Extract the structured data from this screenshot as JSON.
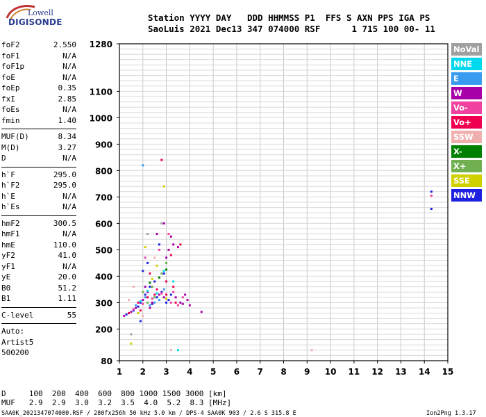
{
  "logo": {
    "line1": "Lowell",
    "line2": "DIGISONDE"
  },
  "header": {
    "row1": "Station YYYY DAY   DDD HHMMSS P1  FFS S AXN PPS IGA PS",
    "row2": "SaoLuis 2021 Dec13 347 074000 RSF      1 715 100 00- 11"
  },
  "params": {
    "group1": [
      {
        "name": "foF2",
        "value": "2.550"
      },
      {
        "name": "foF1",
        "value": "N/A"
      },
      {
        "name": "foF1p",
        "value": "N/A"
      },
      {
        "name": "foE",
        "value": "N/A"
      },
      {
        "name": "foEp",
        "value": "0.35"
      },
      {
        "name": "fxI",
        "value": "2.85"
      },
      {
        "name": "foEs",
        "value": "N/A"
      },
      {
        "name": "fmin",
        "value": "1.40"
      }
    ],
    "group2": [
      {
        "name": "MUF(D)",
        "value": "8.34"
      },
      {
        "name": "M(D)",
        "value": "3.27"
      },
      {
        "name": "D",
        "value": "N/A"
      }
    ],
    "group3": [
      {
        "name": "h`F",
        "value": "295.0"
      },
      {
        "name": "h`F2",
        "value": "295.0"
      },
      {
        "name": "h`E",
        "value": "N/A"
      },
      {
        "name": "h`Es",
        "value": "N/A"
      }
    ],
    "group4": [
      {
        "name": "hmF2",
        "value": "300.5"
      },
      {
        "name": "hmF1",
        "value": "N/A"
      },
      {
        "name": "hmE",
        "value": "110.0"
      },
      {
        "name": "yF2",
        "value": "41.0"
      },
      {
        "name": "yF1",
        "value": "N/A"
      },
      {
        "name": "yE",
        "value": "20.0"
      },
      {
        "name": "B0",
        "value": "51.2"
      },
      {
        "name": "B1",
        "value": "1.11"
      }
    ],
    "clevel": {
      "name": "C-level",
      "value": "55"
    },
    "autoscale": [
      "Auto:",
      "Artist5",
      "500200"
    ]
  },
  "legend": [
    {
      "label": "NoVal",
      "color": "#a0a0a0"
    },
    {
      "label": "NNE",
      "color": "#00d8f0"
    },
    {
      "label": "E",
      "color": "#3a9cf0"
    },
    {
      "label": "W",
      "color": "#a800a8"
    },
    {
      "label": "Vo-",
      "color": "#f040a0"
    },
    {
      "label": "Vo+",
      "color": "#f00050"
    },
    {
      "label": "SSW",
      "color": "#f0b0b0"
    },
    {
      "label": "X-",
      "color": "#008000"
    },
    {
      "label": "X+",
      "color": "#70b050"
    },
    {
      "label": "SSE",
      "color": "#d0d000"
    },
    {
      "label": "NNW",
      "color": "#2020e0"
    }
  ],
  "chart_data": {
    "type": "scatter",
    "title": "",
    "xlabel": "",
    "ylabel": "",
    "xlim": [
      1,
      15
    ],
    "ylim": [
      80,
      1280
    ],
    "x_ticks": [
      1,
      2,
      3,
      4,
      5,
      6,
      7,
      8,
      9,
      10,
      11,
      12,
      13,
      14,
      15
    ],
    "y_ticks": [
      80,
      200,
      300,
      400,
      500,
      600,
      700,
      800,
      900,
      1000,
      1100,
      1280
    ],
    "grid": true,
    "series": [
      {
        "label": "NNW",
        "color": "#2020e0",
        "points": [
          [
            1.3,
            255
          ],
          [
            1.6,
            270
          ],
          [
            1.9,
            300
          ],
          [
            2.1,
            330
          ],
          [
            2.3,
            360
          ],
          [
            2.6,
            320
          ],
          [
            2.8,
            340
          ],
          [
            3.0,
            300
          ],
          [
            3.2,
            330
          ],
          [
            2.0,
            420
          ],
          [
            2.2,
            450
          ],
          [
            2.5,
            380
          ],
          [
            2.9,
            410
          ],
          [
            1.8,
            285
          ],
          [
            2.4,
            295
          ],
          [
            14.3,
            720
          ],
          [
            14.3,
            655
          ],
          [
            1.9,
            230
          ],
          [
            2.7,
            520
          ],
          [
            3.1,
            310
          ]
        ]
      },
      {
        "label": "W",
        "color": "#a800a8",
        "points": [
          [
            1.2,
            250
          ],
          [
            1.5,
            265
          ],
          [
            1.7,
            280
          ],
          [
            2.0,
            310
          ],
          [
            2.2,
            340
          ],
          [
            2.4,
            300
          ],
          [
            2.7,
            330
          ],
          [
            2.9,
            320
          ],
          [
            3.1,
            500
          ],
          [
            3.3,
            520
          ],
          [
            3.5,
            510
          ],
          [
            3.2,
            550
          ],
          [
            3.4,
            320
          ],
          [
            3.6,
            300
          ],
          [
            3.8,
            330
          ],
          [
            3.0,
            470
          ],
          [
            2.9,
            600
          ],
          [
            2.6,
            560
          ],
          [
            4.0,
            290
          ],
          [
            4.5,
            265
          ],
          [
            2.1,
            360
          ],
          [
            3.7,
            295
          ],
          [
            3.9,
            310
          ],
          [
            2.3,
            280
          ]
        ]
      },
      {
        "label": "Vo+",
        "color": "#f00050",
        "points": [
          [
            1.4,
            260
          ],
          [
            1.8,
            300
          ],
          [
            2.2,
            320
          ],
          [
            2.6,
            350
          ],
          [
            3.0,
            380
          ],
          [
            3.3,
            360
          ],
          [
            2.8,
            840
          ],
          [
            2.3,
            410
          ],
          [
            3.2,
            480
          ],
          [
            3.6,
            520
          ],
          [
            2.5,
            330
          ],
          [
            1.9,
            270
          ],
          [
            3.4,
            300
          ],
          [
            3.0,
            330
          ]
        ]
      },
      {
        "label": "Vo-",
        "color": "#f040a0",
        "points": [
          [
            1.6,
            275
          ],
          [
            2.0,
            295
          ],
          [
            2.4,
            315
          ],
          [
            2.8,
            335
          ],
          [
            3.2,
            300
          ],
          [
            3.5,
            290
          ],
          [
            3.7,
            320
          ],
          [
            2.7,
            500
          ],
          [
            3.1,
            560
          ],
          [
            14.3,
            705
          ],
          [
            2.1,
            470
          ],
          [
            3.3,
            340
          ]
        ]
      },
      {
        "label": "E",
        "color": "#3a9cf0",
        "points": [
          [
            1.7,
            290
          ],
          [
            2.1,
            320
          ],
          [
            2.5,
            300
          ],
          [
            2.9,
            350
          ],
          [
            2.0,
            820
          ],
          [
            2.3,
            290
          ],
          [
            2.7,
            310
          ]
        ]
      },
      {
        "label": "NNE",
        "color": "#00d8f0",
        "points": [
          [
            1.9,
            305
          ],
          [
            2.2,
            345
          ],
          [
            2.6,
            335
          ],
          [
            2.9,
            420
          ],
          [
            3.5,
            120
          ],
          [
            3.3,
            380
          ]
        ]
      },
      {
        "label": "X+",
        "color": "#70b050",
        "points": [
          [
            2.0,
            340
          ],
          [
            2.4,
            360
          ],
          [
            2.8,
            410
          ],
          [
            3.0,
            450
          ],
          [
            2.5,
            320
          ],
          [
            2.2,
            300
          ]
        ]
      },
      {
        "label": "SSE",
        "color": "#d0d000",
        "points": [
          [
            1.8,
            260
          ],
          [
            2.1,
            510
          ],
          [
            2.4,
            390
          ],
          [
            2.9,
            740
          ],
          [
            2.6,
            440
          ],
          [
            1.5,
            145
          ],
          [
            3.0,
            315
          ]
        ]
      },
      {
        "label": "SSW",
        "color": "#f0b0b0",
        "points": [
          [
            1.6,
            360
          ],
          [
            2.0,
            250
          ],
          [
            3.2,
            120
          ],
          [
            9.2,
            120
          ],
          [
            2.5,
            470
          ],
          [
            1.4,
            310
          ]
        ]
      },
      {
        "label": "X-",
        "color": "#008000",
        "points": [
          [
            2.3,
            375
          ],
          [
            2.7,
            395
          ],
          [
            3.0,
            425
          ]
        ]
      },
      {
        "label": "NoVal",
        "color": "#a0a0a0",
        "points": [
          [
            1.5,
            180
          ],
          [
            2.2,
            560
          ],
          [
            2.8,
            600
          ]
        ]
      }
    ]
  },
  "footer": {
    "line1": "D     100  200  400  600  800 1000 1500 3000 [km]",
    "line2": "MUF   2.9  2.9  3.0  3.2  3.5  4.0  5.2  8.3 [MHz]",
    "line3": "SAA0K_2021347074000.RSF / 280fx256h 50 kHz 5.0 km / DPS-4 SAA0K 903 / 2.6 S 315.8 E",
    "version": "Ion2Png 1.3.17"
  }
}
